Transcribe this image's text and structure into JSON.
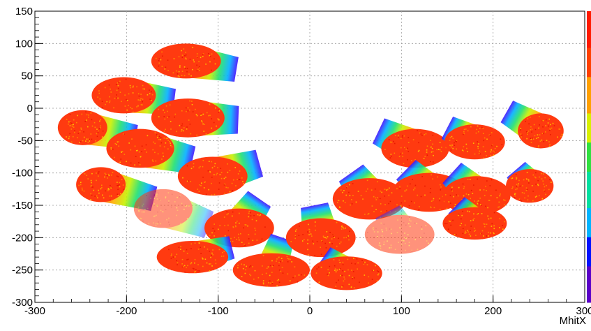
{
  "chart_data": {
    "type": "scatter",
    "title": "",
    "xlabel": "MhitX",
    "ylabel": "",
    "xlim": [
      -300,
      300
    ],
    "ylim": [
      -300,
      150
    ],
    "x_ticks": [
      -300,
      -200,
      -100,
      0,
      100,
      200,
      300
    ],
    "y_ticks": [
      -300,
      -250,
      -200,
      -150,
      -100,
      -50,
      0,
      50,
      100,
      150
    ],
    "x_tick_labels": [
      "-300",
      "-200",
      "-100",
      "0",
      "100",
      "200",
      "300"
    ],
    "y_tick_labels": [
      "-300",
      "-250",
      "-200",
      "-150",
      "-100",
      "-50",
      "0",
      "50",
      "100",
      "150"
    ],
    "grid": true,
    "palette_colorbar": "right",
    "colorscale": [
      "#5a00c8",
      "#0010ff",
      "#00b4ff",
      "#00e0a0",
      "#30e040",
      "#d8f000",
      "#ffa000",
      "#ff4000",
      "#ff1a00"
    ],
    "clusters": [
      {
        "x": -135,
        "y": 73,
        "rx": 38,
        "ry": 27,
        "tail_x": -80,
        "tail_y": 60,
        "faded": false
      },
      {
        "x": -203,
        "y": 20,
        "rx": 35,
        "ry": 28,
        "tail_x": -148,
        "tail_y": 10,
        "faded": false
      },
      {
        "x": -133,
        "y": -15,
        "rx": 40,
        "ry": 30,
        "tail_x": -78,
        "tail_y": -18,
        "faded": false
      },
      {
        "x": -248,
        "y": -30,
        "rx": 27,
        "ry": 27,
        "tail_x": -190,
        "tail_y": -45,
        "faded": false
      },
      {
        "x": -185,
        "y": -62,
        "rx": 37,
        "ry": 30,
        "tail_x": -128,
        "tail_y": -80,
        "faded": false
      },
      {
        "x": -106,
        "y": -105,
        "rx": 38,
        "ry": 30,
        "tail_x": -55,
        "tail_y": -85,
        "faded": false
      },
      {
        "x": -228,
        "y": -118,
        "rx": 27,
        "ry": 27,
        "tail_x": -170,
        "tail_y": -140,
        "faded": false
      },
      {
        "x": -160,
        "y": -155,
        "rx": 32,
        "ry": 30,
        "tail_x": -110,
        "tail_y": -180,
        "faded": true
      },
      {
        "x": -77,
        "y": -185,
        "rx": 38,
        "ry": 30,
        "tail_x": -55,
        "tail_y": -140,
        "faded": false
      },
      {
        "x": -128,
        "y": -230,
        "rx": 39,
        "ry": 25,
        "tail_x": -85,
        "tail_y": -215,
        "faded": false
      },
      {
        "x": -42,
        "y": -250,
        "rx": 42,
        "ry": 26,
        "tail_x": -30,
        "tail_y": -200,
        "faded": false
      },
      {
        "x": 12,
        "y": -200,
        "rx": 38,
        "ry": 30,
        "tail_x": 5,
        "tail_y": -150,
        "faded": false
      },
      {
        "x": 40,
        "y": -255,
        "rx": 39,
        "ry": 26,
        "tail_x": 15,
        "tail_y": -230,
        "faded": false
      },
      {
        "x": 65,
        "y": -140,
        "rx": 40,
        "ry": 32,
        "tail_x": 45,
        "tail_y": -100,
        "faded": false
      },
      {
        "x": 98,
        "y": -195,
        "rx": 38,
        "ry": 30,
        "tail_x": 85,
        "tail_y": -160,
        "faded": true
      },
      {
        "x": 115,
        "y": -62,
        "rx": 37,
        "ry": 30,
        "tail_x": 75,
        "tail_y": -35,
        "faded": false
      },
      {
        "x": 180,
        "y": -52,
        "rx": 33,
        "ry": 27,
        "tail_x": 150,
        "tail_y": -30,
        "faded": false
      },
      {
        "x": 130,
        "y": -130,
        "rx": 40,
        "ry": 30,
        "tail_x": 105,
        "tail_y": -95,
        "faded": false
      },
      {
        "x": 182,
        "y": -135,
        "rx": 37,
        "ry": 30,
        "tail_x": 155,
        "tail_y": -100,
        "faded": false
      },
      {
        "x": 240,
        "y": -120,
        "rx": 26,
        "ry": 26,
        "tail_x": 225,
        "tail_y": -95,
        "faded": false
      },
      {
        "x": 252,
        "y": -35,
        "rx": 25,
        "ry": 27,
        "tail_x": 215,
        "tail_y": -5,
        "faded": false
      },
      {
        "x": 180,
        "y": -178,
        "rx": 35,
        "ry": 25,
        "tail_x": 160,
        "tail_y": -150,
        "faded": false
      }
    ]
  }
}
